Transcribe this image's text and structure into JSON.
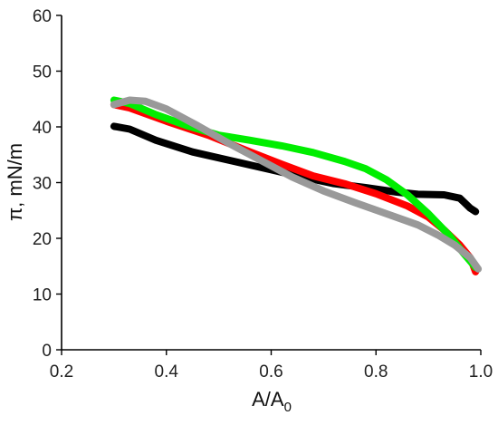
{
  "chart_data": {
    "type": "line",
    "xlabel": "A/A",
    "xlabel_sub": "0",
    "ylabel": "π, mN/m",
    "xlim": [
      0.2,
      1.0
    ],
    "ylim": [
      0,
      60
    ],
    "x_ticks": [
      0.2,
      0.4,
      0.6,
      0.8,
      1.0
    ],
    "x_tick_labels": [
      "0.2",
      "0.4",
      "0.6",
      "0.8",
      "1.0"
    ],
    "y_ticks": [
      0,
      10,
      20,
      30,
      40,
      50,
      60
    ],
    "y_tick_labels": [
      "0",
      "10",
      "20",
      "30",
      "40",
      "50",
      "60"
    ],
    "grid": false,
    "legend": "none",
    "series": [
      {
        "color": "#000000",
        "points": [
          [
            0.3,
            40.1
          ],
          [
            0.33,
            39.6
          ],
          [
            0.38,
            37.6
          ],
          [
            0.45,
            35.5
          ],
          [
            0.52,
            34.0
          ],
          [
            0.6,
            32.3
          ],
          [
            0.66,
            31.0
          ],
          [
            0.72,
            29.8
          ],
          [
            0.78,
            29.1
          ],
          [
            0.84,
            28.3
          ],
          [
            0.88,
            27.9
          ],
          [
            0.93,
            27.8
          ],
          [
            0.96,
            27.2
          ],
          [
            0.98,
            25.4
          ],
          [
            0.99,
            24.8
          ]
        ]
      },
      {
        "color": "#ff0000",
        "points": [
          [
            0.3,
            44.0
          ],
          [
            0.33,
            43.4
          ],
          [
            0.4,
            41.0
          ],
          [
            0.48,
            38.5
          ],
          [
            0.56,
            35.5
          ],
          [
            0.62,
            33.3
          ],
          [
            0.68,
            31.2
          ],
          [
            0.74,
            29.8
          ],
          [
            0.8,
            28.0
          ],
          [
            0.86,
            25.8
          ],
          [
            0.9,
            23.8
          ],
          [
            0.93,
            21.5
          ],
          [
            0.96,
            18.8
          ],
          [
            0.98,
            16.5
          ],
          [
            0.99,
            14.0
          ]
        ]
      },
      {
        "color": "#00ee00",
        "points": [
          [
            0.3,
            44.8
          ],
          [
            0.33,
            44.2
          ],
          [
            0.38,
            42.2
          ],
          [
            0.44,
            40.2
          ],
          [
            0.5,
            38.5
          ],
          [
            0.56,
            37.6
          ],
          [
            0.62,
            36.6
          ],
          [
            0.68,
            35.4
          ],
          [
            0.74,
            33.8
          ],
          [
            0.78,
            32.5
          ],
          [
            0.82,
            30.5
          ],
          [
            0.86,
            27.8
          ],
          [
            0.9,
            24.4
          ],
          [
            0.94,
            20.5
          ],
          [
            0.97,
            17.0
          ],
          [
            0.99,
            14.8
          ]
        ]
      },
      {
        "color": "#999999",
        "points": [
          [
            0.3,
            44.0
          ],
          [
            0.33,
            44.8
          ],
          [
            0.36,
            44.6
          ],
          [
            0.4,
            43.2
          ],
          [
            0.46,
            40.2
          ],
          [
            0.52,
            37.0
          ],
          [
            0.58,
            34.0
          ],
          [
            0.64,
            31.0
          ],
          [
            0.7,
            28.5
          ],
          [
            0.76,
            26.4
          ],
          [
            0.82,
            24.4
          ],
          [
            0.88,
            22.4
          ],
          [
            0.92,
            20.5
          ],
          [
            0.95,
            18.8
          ],
          [
            0.98,
            16.5
          ],
          [
            0.995,
            14.5
          ]
        ]
      }
    ]
  }
}
